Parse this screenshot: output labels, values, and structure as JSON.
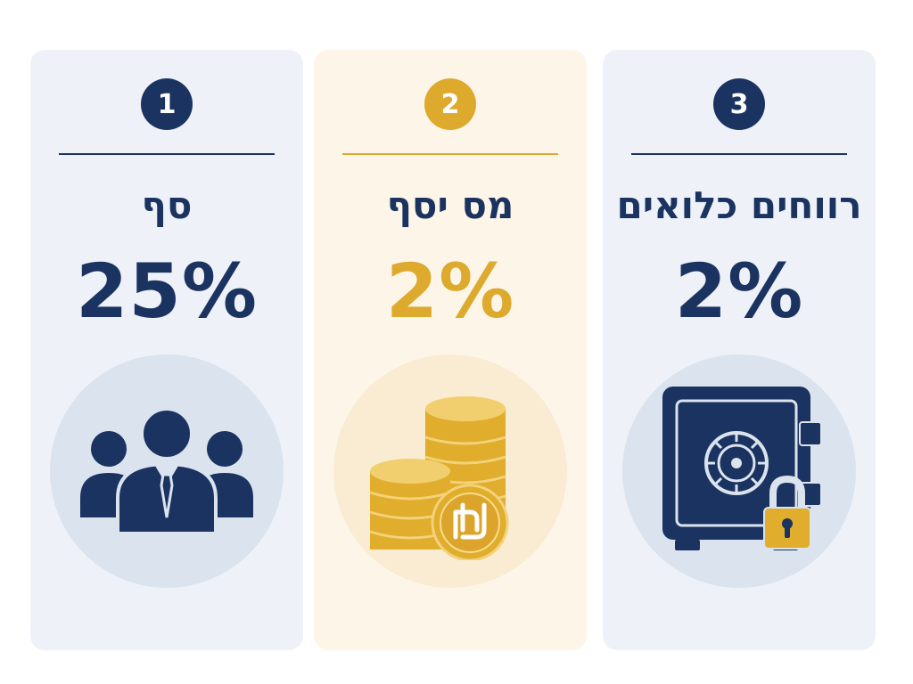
{
  "colors": {
    "navy": "#1b3360",
    "gold": "#ddaa2e",
    "navy_circle": "#dbe3ee",
    "gold_circle": "#f9ecd2"
  },
  "cards": [
    {
      "number": "1",
      "title": "סף",
      "value": "25%",
      "icon": "people-icon",
      "accent": "navy"
    },
    {
      "number": "2",
      "title": "מס יסף",
      "value": "2%",
      "icon": "shekel-coins-icon",
      "accent": "gold"
    },
    {
      "number": "3",
      "title": "רווחים כלואים",
      "value": "2%",
      "icon": "locked-safe-icon",
      "accent": "navy"
    }
  ]
}
